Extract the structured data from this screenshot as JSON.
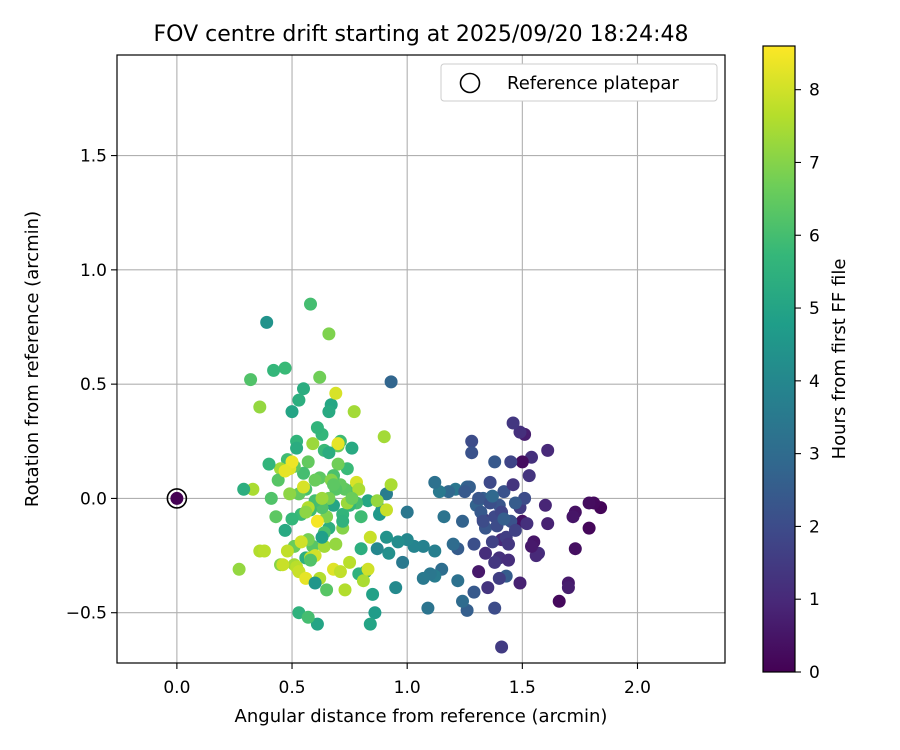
{
  "chart_data": {
    "type": "scatter",
    "title": "FOV centre drift starting at 2025/09/20 18:24:48",
    "xlabel": "Angular distance from reference (arcmin)",
    "ylabel": "Rotation from reference (arcmin)",
    "xlim": [
      -0.26,
      2.38
    ],
    "ylim": [
      -0.72,
      1.94
    ],
    "xticks": [
      0.0,
      0.5,
      1.0,
      1.5,
      2.0
    ],
    "xtick_labels": [
      "0.0",
      "0.5",
      "1.0",
      "1.5",
      "2.0"
    ],
    "yticks": [
      -0.5,
      0.0,
      0.5,
      1.0,
      1.5
    ],
    "ytick_labels": [
      "−0.5",
      "0.0",
      "0.5",
      "1.0",
      "1.5"
    ],
    "grid": true,
    "legend": {
      "label": "Reference platepar",
      "placement": "top-right"
    },
    "reference_point": {
      "x": 0.0,
      "y": 0.0
    },
    "colorbar": {
      "label": "Hours from first FF file",
      "min": 0,
      "max": 8.6,
      "ticks": [
        0,
        1,
        2,
        3,
        4,
        5,
        6,
        7,
        8
      ],
      "tick_labels": [
        "0",
        "1",
        "2",
        "3",
        "4",
        "5",
        "6",
        "7",
        "8"
      ],
      "colormap": [
        "#440154",
        "#482878",
        "#3e4989",
        "#31688e",
        "#26828e",
        "#1f9e89",
        "#35b779",
        "#6ece58",
        "#b5de2b",
        "#fde725"
      ]
    },
    "points": [
      [
        1.84,
        -0.04,
        0.1
      ],
      [
        1.81,
        -0.02,
        0.2
      ],
      [
        1.79,
        -0.02,
        0.3
      ],
      [
        1.79,
        -0.13,
        0.15
      ],
      [
        1.73,
        -0.06,
        0.4
      ],
      [
        1.72,
        -0.08,
        0.5
      ],
      [
        1.73,
        -0.22,
        0.35
      ],
      [
        1.7,
        -0.37,
        0.6
      ],
      [
        1.7,
        -0.39,
        0.7
      ],
      [
        1.66,
        -0.45,
        0.2
      ],
      [
        1.61,
        -0.11,
        0.8
      ],
      [
        1.6,
        -0.03,
        0.9
      ],
      [
        1.61,
        0.21,
        1.0
      ],
      [
        1.57,
        -0.24,
        1.1
      ],
      [
        1.56,
        -0.25,
        1.0
      ],
      [
        1.55,
        -0.19,
        0.5
      ],
      [
        1.54,
        -0.21,
        0.6
      ],
      [
        1.54,
        0.18,
        1.2
      ],
      [
        1.53,
        0.1,
        1.3
      ],
      [
        1.51,
        0.28,
        0.7
      ],
      [
        1.5,
        -0.1,
        0.4
      ],
      [
        1.5,
        0.16,
        0.3
      ],
      [
        1.49,
        0.29,
        1.2
      ],
      [
        1.49,
        -0.37,
        0.8
      ],
      [
        1.46,
        0.33,
        1.4
      ],
      [
        1.45,
        0.16,
        1.8
      ],
      [
        1.45,
        -0.1,
        2.2
      ],
      [
        1.43,
        -0.34,
        2.5
      ],
      [
        1.41,
        -0.65,
        1.5
      ],
      [
        1.41,
        -0.18,
        1.0
      ],
      [
        1.4,
        -0.26,
        1.2
      ],
      [
        1.4,
        -0.35,
        1.6
      ],
      [
        1.4,
        -0.03,
        2.3
      ],
      [
        1.38,
        -0.48,
        2.0
      ],
      [
        1.38,
        -0.28,
        1.4
      ],
      [
        1.37,
        -0.19,
        1.7
      ],
      [
        1.36,
        0.07,
        1.9
      ],
      [
        1.35,
        -0.39,
        1.3
      ],
      [
        1.34,
        -0.24,
        1.1
      ],
      [
        1.33,
        -0.09,
        1.5
      ],
      [
        1.33,
        0.0,
        2.6
      ],
      [
        1.31,
        -0.32,
        0.6
      ],
      [
        1.29,
        -0.2,
        2.1
      ],
      [
        1.29,
        -0.41,
        2.4
      ],
      [
        1.28,
        0.25,
        2.0
      ],
      [
        1.28,
        0.2,
        2.2
      ],
      [
        1.26,
        -0.49,
        2.6
      ],
      [
        1.26,
        0.05,
        2.8
      ],
      [
        1.24,
        -0.45,
        3.0
      ],
      [
        1.24,
        -0.1,
        2.7
      ],
      [
        1.22,
        -0.36,
        3.2
      ],
      [
        1.22,
        -0.22,
        2.5
      ],
      [
        1.21,
        0.04,
        3.4
      ],
      [
        1.2,
        -0.2,
        3.0
      ],
      [
        1.18,
        0.03,
        2.9
      ],
      [
        1.16,
        -0.08,
        3.3
      ],
      [
        1.15,
        -0.31,
        3.1
      ],
      [
        1.14,
        0.03,
        3.5
      ],
      [
        1.12,
        -0.34,
        3.6
      ],
      [
        1.12,
        -0.23,
        3.7
      ],
      [
        1.12,
        0.07,
        3.2
      ],
      [
        1.1,
        -0.33,
        3.4
      ],
      [
        1.09,
        -0.48,
        3.3
      ],
      [
        1.07,
        -0.21,
        3.8
      ],
      [
        1.07,
        -0.35,
        3.5
      ],
      [
        1.03,
        -0.21,
        3.9
      ],
      [
        1.0,
        -0.18,
        4.0
      ],
      [
        1.0,
        -0.06,
        3.4
      ],
      [
        0.98,
        -0.28,
        3.5
      ],
      [
        0.96,
        -0.19,
        4.2
      ],
      [
        0.95,
        -0.39,
        4.1
      ],
      [
        0.93,
        0.51,
        2.8
      ],
      [
        0.92,
        -0.24,
        4.3
      ],
      [
        0.91,
        -0.17,
        4.4
      ],
      [
        0.91,
        0.02,
        3.6
      ],
      [
        0.89,
        -0.05,
        4.5
      ],
      [
        0.88,
        -0.07,
        4.6
      ],
      [
        0.87,
        -0.22,
        4.0
      ],
      [
        0.86,
        -0.5,
        4.7
      ],
      [
        0.85,
        -0.42,
        4.9
      ],
      [
        0.84,
        -0.55,
        5.0
      ],
      [
        0.83,
        -0.01,
        5.1
      ],
      [
        0.82,
        -0.32,
        5.3
      ],
      [
        0.8,
        -0.22,
        5.4
      ],
      [
        0.79,
        -0.33,
        5.5
      ],
      [
        0.78,
        -0.02,
        6.0
      ],
      [
        0.77,
        0.04,
        6.2
      ],
      [
        0.76,
        0.22,
        5.2
      ],
      [
        0.75,
        -0.03,
        5.7
      ],
      [
        0.74,
        0.13,
        5.8
      ],
      [
        0.73,
        0.04,
        6.4
      ],
      [
        0.72,
        -0.07,
        5.6
      ],
      [
        0.71,
        0.25,
        5.9
      ],
      [
        0.71,
        0.06,
        6.5
      ],
      [
        0.7,
        0.15,
        6.7
      ],
      [
        0.7,
        0.23,
        6.6
      ],
      [
        0.69,
        0.04,
        6.3
      ],
      [
        0.68,
        -0.03,
        5.0
      ],
      [
        0.68,
        0.1,
        6.1
      ],
      [
        0.67,
        0.41,
        5.1
      ],
      [
        0.66,
        -0.13,
        5.4
      ],
      [
        0.66,
        0.0,
        6.8
      ],
      [
        0.66,
        0.38,
        5.2
      ],
      [
        0.65,
        -0.08,
        6.9
      ],
      [
        0.64,
        -0.15,
        6.1
      ],
      [
        0.64,
        0.21,
        5.8
      ],
      [
        0.63,
        0.28,
        5.7
      ],
      [
        0.63,
        -0.04,
        6.2
      ],
      [
        0.62,
        0.09,
        6.4
      ],
      [
        0.62,
        0.53,
        6.7
      ],
      [
        0.61,
        0.31,
        5.6
      ],
      [
        0.6,
        0.08,
        6.6
      ],
      [
        0.6,
        -0.01,
        6.0
      ],
      [
        0.59,
        -0.21,
        6.3
      ],
      [
        0.58,
        -0.05,
        5.9
      ],
      [
        0.58,
        0.85,
        6.0
      ],
      [
        0.57,
        0.16,
        6.5
      ],
      [
        0.57,
        -0.18,
        6.8
      ],
      [
        0.56,
        0.04,
        6.1
      ],
      [
        0.56,
        -0.26,
        5.4
      ],
      [
        0.55,
        0.48,
        5.3
      ],
      [
        0.55,
        0.11,
        6.0
      ],
      [
        0.54,
        -0.07,
        5.8
      ],
      [
        0.53,
        0.02,
        6.5
      ],
      [
        0.53,
        -0.5,
        5.5
      ],
      [
        0.52,
        0.25,
        5.6
      ],
      [
        0.52,
        0.22,
        5.3
      ],
      [
        0.51,
        0.14,
        6.4
      ],
      [
        0.51,
        -0.21,
        6.6
      ],
      [
        0.5,
        -0.09,
        5.7
      ],
      [
        0.5,
        0.38,
        5.0
      ],
      [
        0.49,
        0.02,
        7.1
      ],
      [
        0.48,
        0.17,
        5.9
      ],
      [
        0.47,
        0.57,
        5.8
      ],
      [
        0.47,
        -0.14,
        5.2
      ],
      [
        0.45,
        0.13,
        7.4
      ],
      [
        0.45,
        -0.29,
        7.0
      ],
      [
        0.44,
        0.08,
        6.3
      ],
      [
        0.43,
        -0.08,
        6.4
      ],
      [
        0.42,
        0.56,
        5.7
      ],
      [
        0.41,
        0.0,
        6.2
      ],
      [
        0.4,
        0.15,
        5.6
      ],
      [
        0.39,
        0.77,
        4.4
      ],
      [
        0.36,
        0.4,
        7.2
      ],
      [
        0.36,
        -0.23,
        7.6
      ],
      [
        0.33,
        0.04,
        7.5
      ],
      [
        0.32,
        0.52,
        6.2
      ],
      [
        0.29,
        0.04,
        5.4
      ],
      [
        0.27,
        -0.31,
        7.2
      ],
      [
        0.49,
        0.13,
        8.2
      ],
      [
        0.5,
        0.16,
        8.4
      ],
      [
        0.51,
        -0.29,
        7.4
      ],
      [
        0.52,
        -0.3,
        7.7
      ],
      [
        0.53,
        -0.32,
        7.9
      ],
      [
        0.54,
        -0.19,
        8.0
      ],
      [
        0.55,
        0.05,
        8.1
      ],
      [
        0.56,
        -0.35,
        8.3
      ],
      [
        0.57,
        -0.04,
        7.6
      ],
      [
        0.58,
        -0.26,
        7.8
      ],
      [
        0.59,
        0.24,
        7.3
      ],
      [
        0.6,
        -0.25,
        8.0
      ],
      [
        0.61,
        -0.1,
        8.5
      ],
      [
        0.62,
        -0.35,
        7.6
      ],
      [
        0.64,
        -0.21,
        7.4
      ],
      [
        0.66,
        0.72,
        6.9
      ],
      [
        0.68,
        -0.31,
        8.2
      ],
      [
        0.69,
        0.46,
        8.1
      ],
      [
        0.7,
        0.24,
        8.3
      ],
      [
        0.71,
        -0.32,
        7.8
      ],
      [
        0.72,
        -0.13,
        7.0
      ],
      [
        0.73,
        -0.4,
        7.6
      ],
      [
        0.75,
        -0.28,
        7.7
      ],
      [
        0.77,
        0.38,
        7.4
      ],
      [
        0.78,
        0.07,
        8.1
      ],
      [
        0.79,
        0.04,
        7.5
      ],
      [
        0.81,
        -0.36,
        7.5
      ],
      [
        0.83,
        -0.31,
        8.0
      ],
      [
        0.84,
        -0.17,
        7.9
      ],
      [
        0.87,
        -0.01,
        7.2
      ],
      [
        0.9,
        0.27,
        7.4
      ],
      [
        0.91,
        -0.05,
        7.9
      ],
      [
        0.93,
        0.06,
        7.5
      ],
      [
        0.46,
        -0.29,
        7.9
      ],
      [
        0.47,
        0.12,
        8.3
      ],
      [
        0.48,
        -0.23,
        7.8
      ],
      [
        0.38,
        -0.23,
        7.7
      ],
      [
        0.56,
        -0.06,
        7.1
      ],
      [
        0.63,
        0.0,
        7.3
      ],
      [
        0.67,
        0.08,
        7.0
      ],
      [
        0.69,
        -0.2,
        7.2
      ],
      [
        0.74,
        -0.02,
        7.3
      ],
      [
        0.65,
        -0.4,
        6.3
      ],
      [
        0.61,
        -0.55,
        5.0
      ],
      [
        0.57,
        -0.52,
        6.0
      ],
      [
        0.58,
        -0.27,
        6.2
      ],
      [
        0.6,
        -0.37,
        4.5
      ],
      [
        0.63,
        -0.17,
        4.8
      ],
      [
        0.68,
        0.06,
        6.4
      ],
      [
        0.66,
        0.2,
        5.3
      ],
      [
        0.72,
        -0.1,
        5.5
      ],
      [
        0.76,
        0.0,
        6.6
      ],
      [
        0.8,
        -0.08,
        5.9
      ],
      [
        0.53,
        0.43,
        5.4
      ],
      [
        1.27,
        0.05,
        2.6
      ],
      [
        1.3,
        -0.03,
        2.7
      ],
      [
        1.32,
        -0.06,
        2.4
      ],
      [
        1.34,
        -0.13,
        2.3
      ],
      [
        1.36,
        -0.02,
        2.1
      ],
      [
        1.38,
        -0.08,
        1.9
      ],
      [
        1.39,
        -0.12,
        2.0
      ],
      [
        1.41,
        -0.06,
        1.8
      ],
      [
        1.42,
        0.03,
        2.2
      ],
      [
        1.43,
        -0.17,
        1.6
      ],
      [
        1.44,
        -0.2,
        1.4
      ],
      [
        1.46,
        0.06,
        1.3
      ],
      [
        1.47,
        -0.14,
        1.7
      ],
      [
        1.49,
        -0.04,
        1.5
      ],
      [
        1.51,
        0.0,
        2.0
      ],
      [
        1.47,
        -0.02,
        2.5
      ],
      [
        1.52,
        -0.11,
        1.2
      ],
      [
        1.38,
        0.16,
        2.4
      ],
      [
        1.44,
        -0.27,
        1.1
      ],
      [
        1.42,
        -0.09,
        2.6
      ],
      [
        1.37,
        0.01,
        2.9
      ],
      [
        1.33,
        -0.1,
        2.0
      ],
      [
        1.31,
        0.0,
        2.3
      ],
      [
        1.25,
        0.03,
        2.4
      ]
    ]
  }
}
